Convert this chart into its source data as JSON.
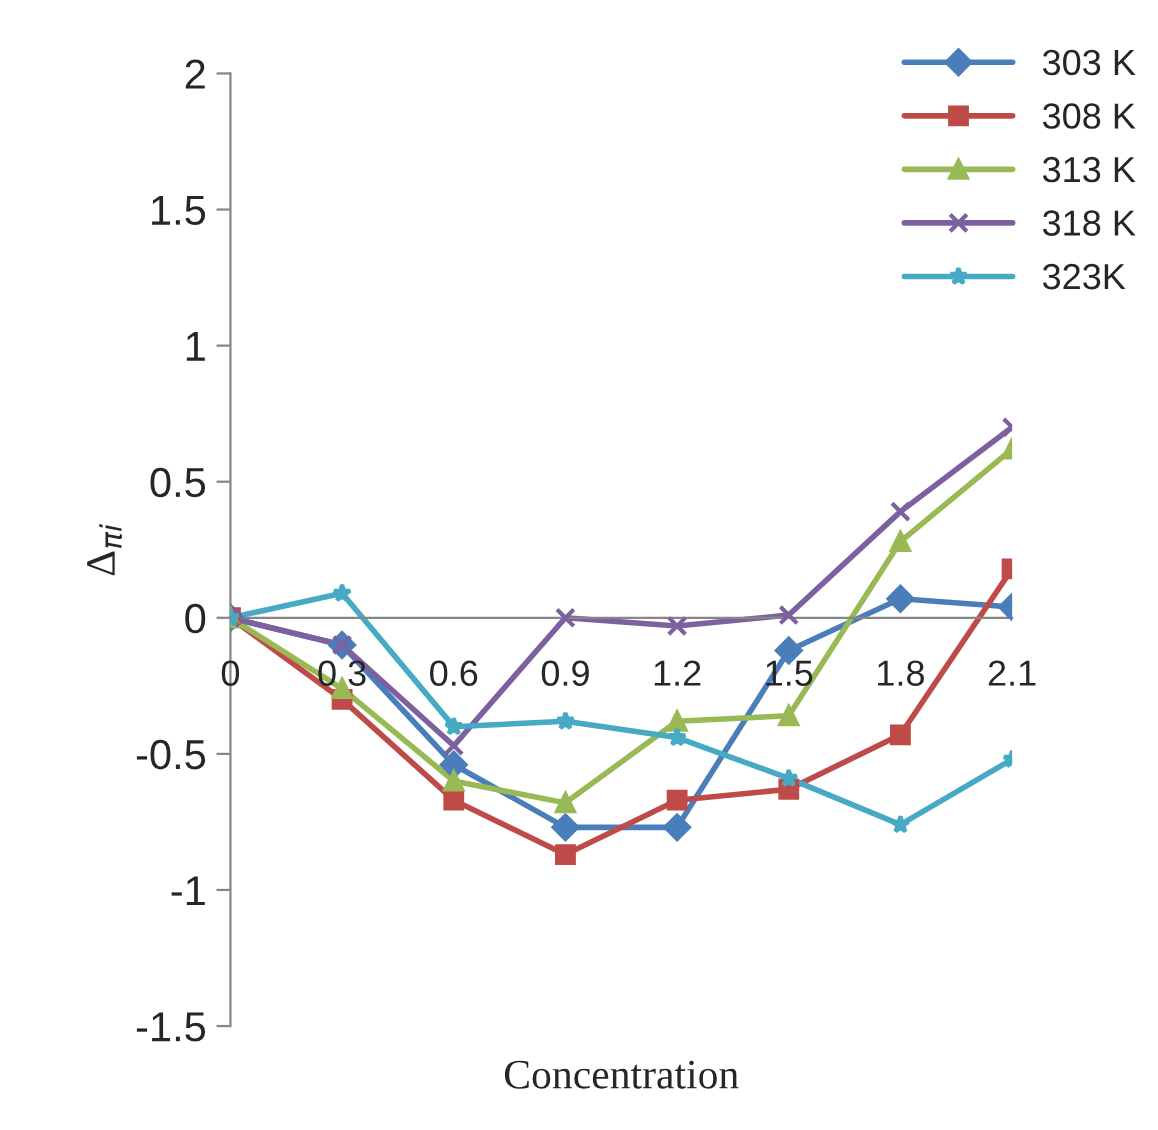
{
  "chart_data": {
    "type": "line",
    "xlabel": "Concentration",
    "ylabel": "Δ$_{πi}$",
    "categories": [
      "0",
      "0.3",
      "0.6",
      "0.9",
      "1.2",
      "1.5",
      "1.8",
      "2.1"
    ],
    "ylim": [
      -1.5,
      2
    ],
    "yticks": [
      -1.5,
      -1,
      -0.5,
      0,
      0.5,
      1,
      1.5,
      2
    ],
    "legend": "top right",
    "grid": false,
    "line_style": "solid",
    "series": [
      {
        "name": "303 K",
        "color": "#4a7ebb",
        "marker": "diamond",
        "values": [
          0,
          -0.1,
          -0.54,
          -0.77,
          -0.77,
          -0.12,
          0.07,
          0.04
        ]
      },
      {
        "name": "308 K",
        "color": "#be4b48",
        "marker": "square",
        "values": [
          0,
          -0.3,
          -0.67,
          -0.87,
          -0.67,
          -0.63,
          -0.43,
          0.18
        ]
      },
      {
        "name": "313 K",
        "color": "#98b954",
        "marker": "triangle",
        "values": [
          0,
          -0.26,
          -0.6,
          -0.68,
          -0.38,
          -0.36,
          0.28,
          0.62
        ]
      },
      {
        "name": "318 K",
        "color": "#7d60a0",
        "marker": "cross",
        "values": [
          0,
          -0.1,
          -0.47,
          0,
          -0.03,
          0.01,
          0.39,
          0.7
        ]
      },
      {
        "name": "323K",
        "color": "#46aac5",
        "marker": "star",
        "values": [
          0,
          0.09,
          -0.4,
          -0.38,
          -0.44,
          -0.59,
          -0.76,
          -0.52
        ]
      }
    ]
  }
}
